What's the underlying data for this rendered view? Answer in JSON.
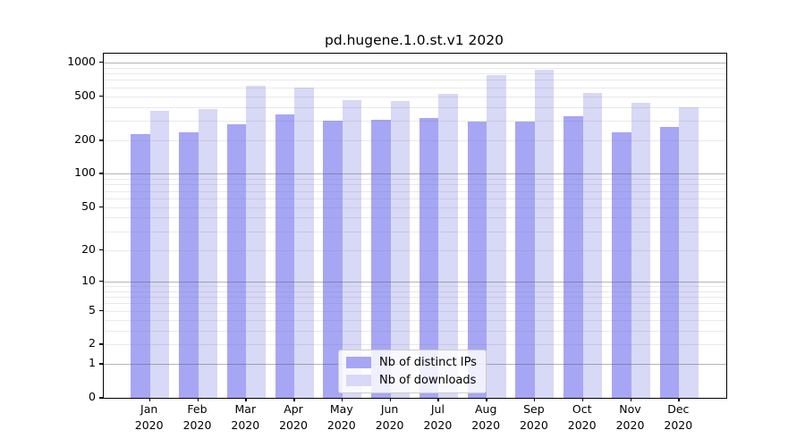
{
  "chart_data": {
    "type": "bar",
    "title": "pd.hugene.1.0.st.v1 2020",
    "categories": [
      "Jan",
      "Feb",
      "Mar",
      "Apr",
      "May",
      "Jun",
      "Jul",
      "Aug",
      "Sep",
      "Oct",
      "Nov",
      "Dec"
    ],
    "category_year": "2020",
    "series": [
      {
        "name": "Nb of distinct IPs",
        "color": "#a6a6f5",
        "values": [
          228,
          236,
          281,
          343,
          299,
          305,
          320,
          296,
          295,
          330,
          238,
          264
        ]
      },
      {
        "name": "Nb of downloads",
        "color": "#d8d8f7",
        "values": [
          370,
          381,
          616,
          593,
          464,
          450,
          524,
          778,
          858,
          534,
          433,
          400
        ]
      }
    ],
    "xlabel": "",
    "ylabel": "",
    "y_scale": "log1p",
    "y_ticks": [
      0,
      1,
      2,
      5,
      10,
      20,
      50,
      100,
      200,
      500,
      1000
    ],
    "grid_major_lines": [
      1,
      10,
      100,
      1000
    ],
    "grid_minor_decades": [
      1,
      10,
      100
    ],
    "ylim": [
      0,
      1200
    ],
    "grid": "on",
    "legend_position": "lower center"
  },
  "colors": {
    "background": "#ffffff",
    "spine": "#000000",
    "series_ips": "#a6a6f5",
    "series_downloads": "#d8d8f7",
    "legend_border": "#cccccc"
  }
}
